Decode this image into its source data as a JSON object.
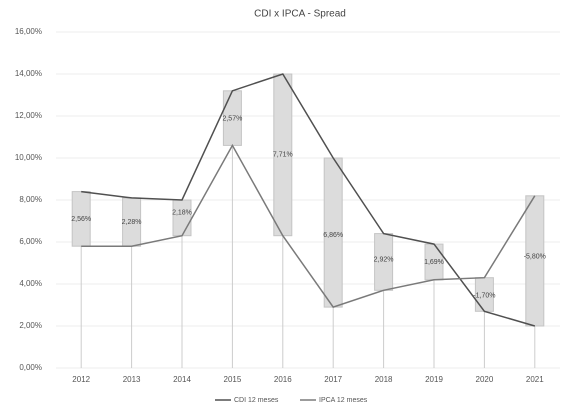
{
  "chart_data": {
    "type": "line",
    "title": "CDI x IPCA - Spread",
    "categories": [
      "2012",
      "2013",
      "2014",
      "2015",
      "2016",
      "2017",
      "2018",
      "2019",
      "2020",
      "2021"
    ],
    "series": [
      {
        "name": "CDI 12 meses",
        "color": "#505050",
        "values": [
          8.4,
          8.1,
          8.0,
          13.2,
          14.0,
          10.0,
          6.4,
          5.9,
          2.7,
          2.0
        ]
      },
      {
        "name": "IPCA 12 meses",
        "color": "#7a7a7a",
        "values": [
          5.8,
          5.8,
          6.3,
          10.6,
          6.3,
          2.9,
          3.7,
          4.2,
          4.3,
          8.2
        ]
      }
    ],
    "spread": {
      "values": [
        2.56,
        2.28,
        2.18,
        2.57,
        7.71,
        6.86,
        2.92,
        1.69,
        -1.7,
        -5.8
      ],
      "value_labels": [
        "2,56%",
        "2,28%",
        "2,18%",
        "2,57%",
        "7,71%",
        "6,86%",
        "2,92%",
        "1,69%",
        "-1,70%",
        "-5,80%"
      ],
      "color": "#dcdcdc"
    },
    "ylim": [
      0,
      16
    ],
    "yticks": [
      {
        "value": 0,
        "label": "0,00%"
      },
      {
        "value": 2,
        "label": "2,00%"
      },
      {
        "value": 4,
        "label": "4,00%"
      },
      {
        "value": 6,
        "label": "6,00%"
      },
      {
        "value": 8,
        "label": "8,00%"
      },
      {
        "value": 10,
        "label": "10,00%"
      },
      {
        "value": 12,
        "label": "12,00%"
      },
      {
        "value": 14,
        "label": "14,00%"
      },
      {
        "value": 16,
        "label": "16,00%"
      }
    ],
    "grid": true
  }
}
